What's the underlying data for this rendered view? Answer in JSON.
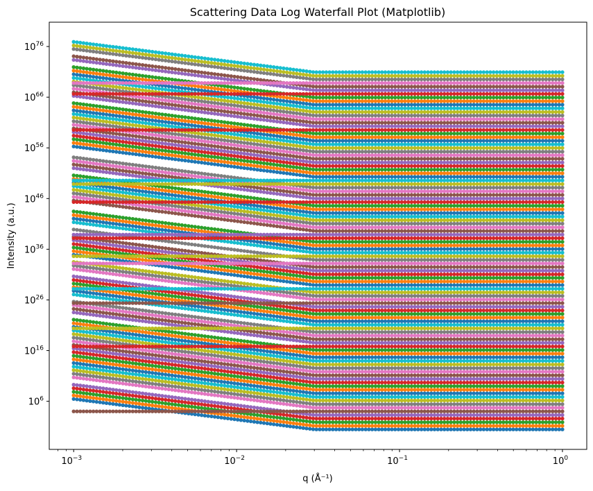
{
  "chart_data": {
    "type": "scatter",
    "title": "Scattering Data Log Waterfall Plot (Matplotlib)",
    "xlabel": "q (Å⁻¹)",
    "ylabel": "Intensity (a.u.)",
    "xscale": "log",
    "yscale": "log",
    "xlim": [
      0.000708,
      1.41
    ],
    "ylim": [
      0.00032,
      6.3e+80
    ],
    "grid": false,
    "legend": "none",
    "marker": "circle",
    "colors": [
      "#1f77b4",
      "#ff7f0e",
      "#2ca02c",
      "#d62728",
      "#9467bd",
      "#8c564b",
      "#e377c2",
      "#7f7f7f",
      "#bcbd22",
      "#17becf"
    ],
    "x_ticks": [
      {
        "value": 0.001,
        "mantissa": "10",
        "exponent": "−3"
      },
      {
        "value": 0.01,
        "mantissa": "10",
        "exponent": "−2"
      },
      {
        "value": 0.1,
        "mantissa": "10",
        "exponent": "−1"
      },
      {
        "value": 1,
        "mantissa": "10",
        "exponent": "0"
      }
    ],
    "y_ticks": [
      {
        "value": 1000000.0,
        "mantissa": "10",
        "exponent": "6"
      },
      {
        "value": 1e+16,
        "mantissa": "10",
        "exponent": "16"
      },
      {
        "value": 1e+26,
        "mantissa": "10",
        "exponent": "26"
      },
      {
        "value": 1e+36,
        "mantissa": "10",
        "exponent": "36"
      },
      {
        "value": 1e+46,
        "mantissa": "10",
        "exponent": "46"
      },
      {
        "value": 1e+56,
        "mantissa": "10",
        "exponent": "56"
      },
      {
        "value": 1e+66,
        "mantissa": "10",
        "exponent": "66"
      },
      {
        "value": 1e+76,
        "mantissa": "10",
        "exponent": "76"
      }
    ],
    "x": [
      0.001,
      0.03,
      1
    ],
    "series": [
      {
        "values": [
          2800000.0,
          2.8,
          2.8
        ]
      },
      {
        "values": [
          14000000.0,
          14.0,
          14.0
        ]
      },
      {
        "values": [
          73000000.0,
          73.0,
          73.0
        ]
      },
      {
        "values": [
          380000000.0,
          380.0,
          380.0
        ]
      },
      {
        "values": [
          1900000000.0,
          1900.0,
          1900.0
        ]
      },
      {
        "values": [
          10000.0,
          10000.0,
          10000.0
        ]
      },
      {
        "values": [
          52000000000.0,
          52000.0,
          52000.0
        ]
      },
      {
        "values": [
          270000000000.0,
          270000.0,
          270000.0
        ]
      },
      {
        "values": [
          1400000000000.0,
          1400000.0,
          1400000.0
        ]
      },
      {
        "values": [
          7000000000000.0,
          7000000.0,
          7000000.0
        ]
      },
      {
        "values": [
          36000000000000.0,
          36000000.0,
          36000000.0
        ]
      },
      {
        "values": [
          190000000000000.0,
          190000000.0,
          190000000.0
        ]
      },
      {
        "values": [
          960000000000000.0,
          960000000.0,
          960000000.0
        ]
      },
      {
        "values": [
          5000000000000000.0,
          5000000000.0,
          5000000000.0
        ]
      },
      {
        "values": [
          2.6e+16,
          26000000000.0,
          26000000000.0
        ]
      },
      {
        "values": [
          1.3e+17,
          130000000000.0,
          130000000000.0
        ]
      },
      {
        "values": [
          6.8e+17,
          680000000000.0,
          680000000000.0
        ]
      },
      {
        "values": [
          3.5e+18,
          3500000000000.0,
          3500000000000.0
        ]
      },
      {
        "values": [
          1.8e+19,
          18000000000000.0,
          18000000000000.0
        ]
      },
      {
        "values": [
          9.3e+19,
          93000000000000.0,
          93000000000000.0
        ]
      },
      {
        "values": [
          4.8e+20,
          480000000000000.0,
          480000000000000.0
        ]
      },
      {
        "values": [
          2.5e+21,
          2500000000000000.0,
          2500000000000000.0
        ]
      },
      {
        "values": [
          1.3e+22,
          1.3e+16,
          1.3e+16
        ]
      },
      {
        "values": [
          6.5e+16,
          6.5e+16,
          6.5e+16
        ]
      },
      {
        "values": [
          3.4e+23,
          3.4e+17,
          3.4e+17
        ]
      },
      {
        "values": [
          1.7e+24,
          1.7e+18,
          1.7e+18
        ]
      },
      {
        "values": [
          9e+24,
          9e+18,
          9e+18
        ]
      },
      {
        "values": [
          4.6e+25,
          4.6e+19,
          4.6e+19
        ]
      },
      {
        "values": [
          2.4e+20,
          2.4e+20,
          2.4e+20
        ]
      },
      {
        "values": [
          1.2e+27,
          1.2e+21,
          1.2e+21
        ]
      },
      {
        "values": [
          6.3e+27,
          6.3e+21,
          6.3e+21
        ]
      },
      {
        "values": [
          3.3e+28,
          3.3e+22,
          3.3e+22
        ]
      },
      {
        "values": [
          1.7e+29,
          1.7e+23,
          1.7e+23
        ]
      },
      {
        "values": [
          8.6e+29,
          8.6e+23,
          8.6e+23
        ]
      },
      {
        "values": [
          4.4e+30,
          4.4e+24,
          4.4e+24
        ]
      },
      {
        "values": [
          2.3e+25,
          2.3e+25,
          2.3e+25
        ]
      },
      {
        "values": [
          1.2e+32,
          1.2e+26,
          1.2e+26
        ]
      },
      {
        "values": [
          6.1e+32,
          6.1e+26,
          6.1e+26
        ]
      },
      {
        "values": [
          3.1e+33,
          3.1e+27,
          3.1e+27
        ]
      },
      {
        "values": [
          1.6e+28,
          1.6e+28,
          1.6e+28
        ]
      },
      {
        "values": [
          8.3e+34,
          8.3e+28,
          8.3e+28
        ]
      },
      {
        "values": [
          4.3e+35,
          4.3e+29,
          4.3e+29
        ]
      },
      {
        "values": [
          2.2e+36,
          2.2e+30,
          2.2e+30
        ]
      },
      {
        "values": [
          1.1e+37,
          1.1e+31,
          1.1e+31
        ]
      },
      {
        "values": [
          5.9e+37,
          5.9e+31,
          5.9e+31
        ]
      },
      {
        "values": [
          3e+38,
          3e+32,
          3e+32
        ]
      },
      {
        "values": [
          1.6e+33,
          1.6e+33,
          1.6e+33
        ]
      },
      {
        "values": [
          8e+39,
          8e+33,
          8e+33
        ]
      },
      {
        "values": [
          4.1e+34,
          4.1e+34,
          4.1e+34
        ]
      },
      {
        "values": [
          2.1e+41,
          2.1e+35,
          2.1e+35
        ]
      },
      {
        "values": [
          1.1e+42,
          1.1e+36,
          1.1e+36
        ]
      },
      {
        "values": [
          5.6e+42,
          5.6e+36,
          5.6e+36
        ]
      },
      {
        "values": [
          2.9e+43,
          2.9e+37,
          2.9e+37
        ]
      },
      {
        "values": [
          1.5e+38,
          1.5e+38,
          1.5e+38
        ]
      },
      {
        "values": [
          7.7e+38,
          7.7e+38,
          7.7e+38
        ]
      },
      {
        "values": [
          4e+45,
          4e+39,
          4e+39
        ]
      },
      {
        "values": [
          2.1e+46,
          2.1e+40,
          2.1e+40
        ]
      },
      {
        "values": [
          1.1e+47,
          1.1e+41,
          1.1e+41
        ]
      },
      {
        "values": [
          5.4e+47,
          5.4e+41,
          5.4e+41
        ]
      },
      {
        "values": [
          2.8e+48,
          2.8e+42,
          2.8e+42
        ]
      },
      {
        "values": [
          1.4e+49,
          1.4e+43,
          1.4e+43
        ]
      },
      {
        "values": [
          7.4e+49,
          7.4e+43,
          7.4e+43
        ]
      },
      {
        "values": [
          3.8e+50,
          3.8e+44,
          3.8e+44
        ]
      },
      {
        "values": [
          2e+45,
          2e+45,
          2e+45
        ]
      },
      {
        "values": [
          1e+52,
          1e+46,
          1e+46
        ]
      },
      {
        "values": [
          5.2e+52,
          5.2e+46,
          5.2e+46
        ]
      },
      {
        "values": [
          2.7e+53,
          2.7e+47,
          2.7e+47
        ]
      },
      {
        "values": [
          1.4e+54,
          1.4e+48,
          1.4e+48
        ]
      },
      {
        "values": [
          7.2e+48,
          7.2e+48,
          7.2e+48
        ]
      },
      {
        "values": [
          3.7e+49,
          3.7e+49,
          3.7e+49
        ]
      },
      {
        "values": [
          1.9e+56,
          1.9e+50,
          1.9e+50
        ]
      },
      {
        "values": [
          9.8e+56,
          9.8e+50,
          9.8e+50
        ]
      },
      {
        "values": [
          5.1e+57,
          5.1e+51,
          5.1e+51
        ]
      },
      {
        "values": [
          2.6e+58,
          2.6e+52,
          2.6e+52
        ]
      },
      {
        "values": [
          1.3e+59,
          1.3e+53,
          1.3e+53
        ]
      },
      {
        "values": [
          6.9e+59,
          6.9e+53,
          6.9e+53
        ]
      },
      {
        "values": [
          3.6e+60,
          3.6e+54,
          3.6e+54
        ]
      },
      {
        "values": [
          1.8e+61,
          1.8e+55,
          1.8e+55
        ]
      },
      {
        "values": [
          9.5e+61,
          9.5e+55,
          9.5e+55
        ]
      },
      {
        "values": [
          4.9e+62,
          4.9e+56,
          4.9e+56
        ]
      },
      {
        "values": [
          2.5e+63,
          2.5e+57,
          2.5e+57
        ]
      },
      {
        "values": [
          1.3e+64,
          1.3e+58,
          1.3e+58
        ]
      },
      {
        "values": [
          6.7e+64,
          6.7e+58,
          6.7e+58
        ]
      },
      {
        "values": [
          3.4e+59,
          3.4e+59,
          3.4e+59
        ]
      },
      {
        "values": [
          1.8e+66,
          1.8e+60,
          1.8e+60
        ]
      },
      {
        "values": [
          9.1e+66,
          9.1e+60,
          9.1e+60
        ]
      },
      {
        "values": [
          4.7e+67,
          4.7e+61,
          4.7e+61
        ]
      },
      {
        "values": [
          2.4e+68,
          2.4e+62,
          2.4e+62
        ]
      },
      {
        "values": [
          1.2e+69,
          1.2e+63,
          1.2e+63
        ]
      },
      {
        "values": [
          6.4e+69,
          6.4e+63,
          6.4e+63
        ]
      },
      {
        "values": [
          3.3e+70,
          3.3e+64,
          3.3e+64
        ]
      },
      {
        "values": [
          1.7e+71,
          1.7e+65,
          1.7e+65
        ]
      },
      {
        "values": [
          8.8e+71,
          8.8e+65,
          8.8e+65
        ]
      },
      {
        "values": [
          4.5e+66,
          4.5e+66,
          4.5e+66
        ]
      },
      {
        "values": [
          2.3e+73,
          2.3e+67,
          2.3e+67
        ]
      },
      {
        "values": [
          1.2e+74,
          1.2e+68,
          1.2e+68
        ]
      },
      {
        "values": [
          6.2e+68,
          6.2e+68,
          6.2e+68
        ]
      },
      {
        "values": [
          3.2e+75,
          3.2e+69,
          3.2e+69
        ]
      },
      {
        "values": [
          1.6e+76,
          1.6e+70,
          1.6e+70
        ]
      },
      {
        "values": [
          8.5e+76,
          8.5e+70,
          8.5e+70
        ]
      }
    ]
  }
}
